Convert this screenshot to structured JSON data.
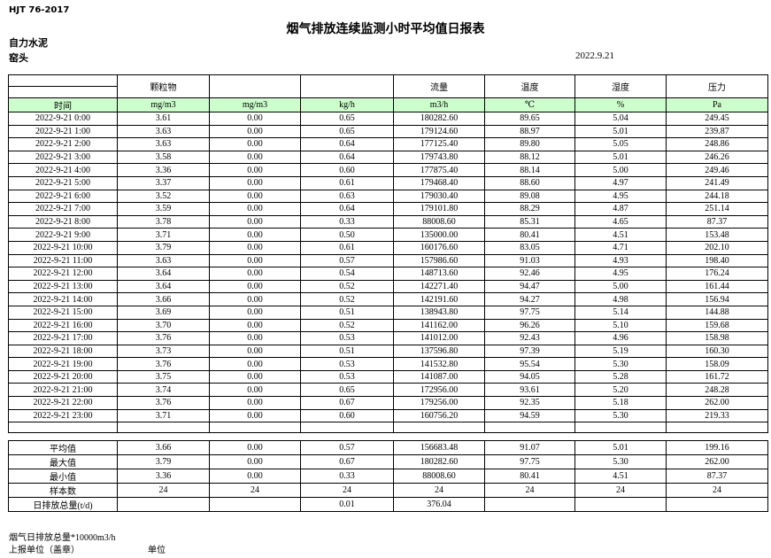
{
  "meta": {
    "standard": "HJT 76-2017",
    "title": "烟气排放连续监测小时平均值日报表",
    "company": "自力水泥",
    "station": "窑头",
    "date": "2022.9.21"
  },
  "colors": {
    "header_green": "#ccffcc",
    "border": "#000000"
  },
  "table": {
    "group_headers": [
      "",
      "颗粒物",
      "",
      "",
      "流量",
      "温度",
      "湿度",
      "压力"
    ],
    "unit_row": [
      "时间",
      "mg/m3",
      "mg/m3",
      "kg/h",
      "m3/h",
      "℃",
      "%",
      "Pa"
    ],
    "rows": [
      [
        "2022-9-21 0:00",
        "3.61",
        "0.00",
        "0.65",
        "180282.60",
        "89.65",
        "5.04",
        "249.45"
      ],
      [
        "2022-9-21 1:00",
        "3.63",
        "0.00",
        "0.65",
        "179124.60",
        "88.97",
        "5.01",
        "239.87"
      ],
      [
        "2022-9-21 2:00",
        "3.63",
        "0.00",
        "0.64",
        "177125.40",
        "89.80",
        "5.05",
        "248.86"
      ],
      [
        "2022-9-21 3:00",
        "3.58",
        "0.00",
        "0.64",
        "179743.80",
        "88.12",
        "5.01",
        "246.26"
      ],
      [
        "2022-9-21 4:00",
        "3.36",
        "0.00",
        "0.60",
        "177875.40",
        "88.14",
        "5.00",
        "249.46"
      ],
      [
        "2022-9-21 5:00",
        "3.37",
        "0.00",
        "0.61",
        "179468.40",
        "88.60",
        "4.97",
        "241.49"
      ],
      [
        "2022-9-21 6:00",
        "3.52",
        "0.00",
        "0.63",
        "179030.40",
        "89.08",
        "4.95",
        "244.18"
      ],
      [
        "2022-9-21 7:00",
        "3.59",
        "0.00",
        "0.64",
        "179101.80",
        "88.29",
        "4.87",
        "251.14"
      ],
      [
        "2022-9-21 8:00",
        "3.78",
        "0.00",
        "0.33",
        "88008.60",
        "85.31",
        "4.65",
        "87.37"
      ],
      [
        "2022-9-21 9:00",
        "3.71",
        "0.00",
        "0.50",
        "135000.00",
        "80.41",
        "4.51",
        "153.48"
      ],
      [
        "2022-9-21 10:00",
        "3.79",
        "0.00",
        "0.61",
        "160176.60",
        "83.05",
        "4.71",
        "202.10"
      ],
      [
        "2022-9-21 11:00",
        "3.63",
        "0.00",
        "0.57",
        "157986.60",
        "91.03",
        "4.93",
        "198.40"
      ],
      [
        "2022-9-21 12:00",
        "3.64",
        "0.00",
        "0.54",
        "148713.60",
        "92.46",
        "4.95",
        "176.24"
      ],
      [
        "2022-9-21 13:00",
        "3.64",
        "0.00",
        "0.52",
        "142271.40",
        "94.47",
        "5.00",
        "161.44"
      ],
      [
        "2022-9-21 14:00",
        "3.66",
        "0.00",
        "0.52",
        "142191.60",
        "94.27",
        "4.98",
        "156.94"
      ],
      [
        "2022-9-21 15:00",
        "3.69",
        "0.00",
        "0.51",
        "138943.80",
        "97.75",
        "5.14",
        "144.88"
      ],
      [
        "2022-9-21 16:00",
        "3.70",
        "0.00",
        "0.52",
        "141162.00",
        "96.26",
        "5.10",
        "159.68"
      ],
      [
        "2022-9-21 17:00",
        "3.76",
        "0.00",
        "0.53",
        "141012.00",
        "92.43",
        "4.96",
        "158.98"
      ],
      [
        "2022-9-21 18:00",
        "3.73",
        "0.00",
        "0.51",
        "137596.80",
        "97.39",
        "5.19",
        "160.30"
      ],
      [
        "2022-9-21 19:00",
        "3.76",
        "0.00",
        "0.53",
        "141532.80",
        "95.54",
        "5.30",
        "158.09"
      ],
      [
        "2022-9-21 20:00",
        "3.75",
        "0.00",
        "0.53",
        "141087.00",
        "94.05",
        "5.28",
        "161.72"
      ],
      [
        "2022-9-21 21:00",
        "3.74",
        "0.00",
        "0.65",
        "172956.00",
        "93.61",
        "5.20",
        "248.28"
      ],
      [
        "2022-9-21 22:00",
        "3.76",
        "0.00",
        "0.67",
        "179256.00",
        "92.35",
        "5.18",
        "262.00"
      ],
      [
        "2022-9-21 23:00",
        "3.71",
        "0.00",
        "0.60",
        "160756.20",
        "94.59",
        "5.30",
        "219.33"
      ]
    ],
    "summary_rows": [
      [
        "平均值",
        "3.66",
        "0.00",
        "0.57",
        "156683.48",
        "91.07",
        "5.01",
        "199.16"
      ],
      [
        "最大值",
        "3.79",
        "0.00",
        "0.67",
        "180282.60",
        "97.75",
        "5.30",
        "262.00"
      ],
      [
        "最小值",
        "3.36",
        "0.00",
        "0.33",
        "88008.60",
        "80.41",
        "4.51",
        "87.37"
      ],
      [
        "样本数",
        "24",
        "24",
        "24",
        "24",
        "24",
        "24",
        "24"
      ],
      [
        "日排放总量(t/d)",
        "",
        "",
        "0.01",
        "376.04",
        "",
        "",
        ""
      ]
    ]
  },
  "footer": {
    "note": "烟气日排放总量*10000m3/h",
    "report_unit_label": "上报单位（盖章）",
    "unit_label": "单位"
  }
}
